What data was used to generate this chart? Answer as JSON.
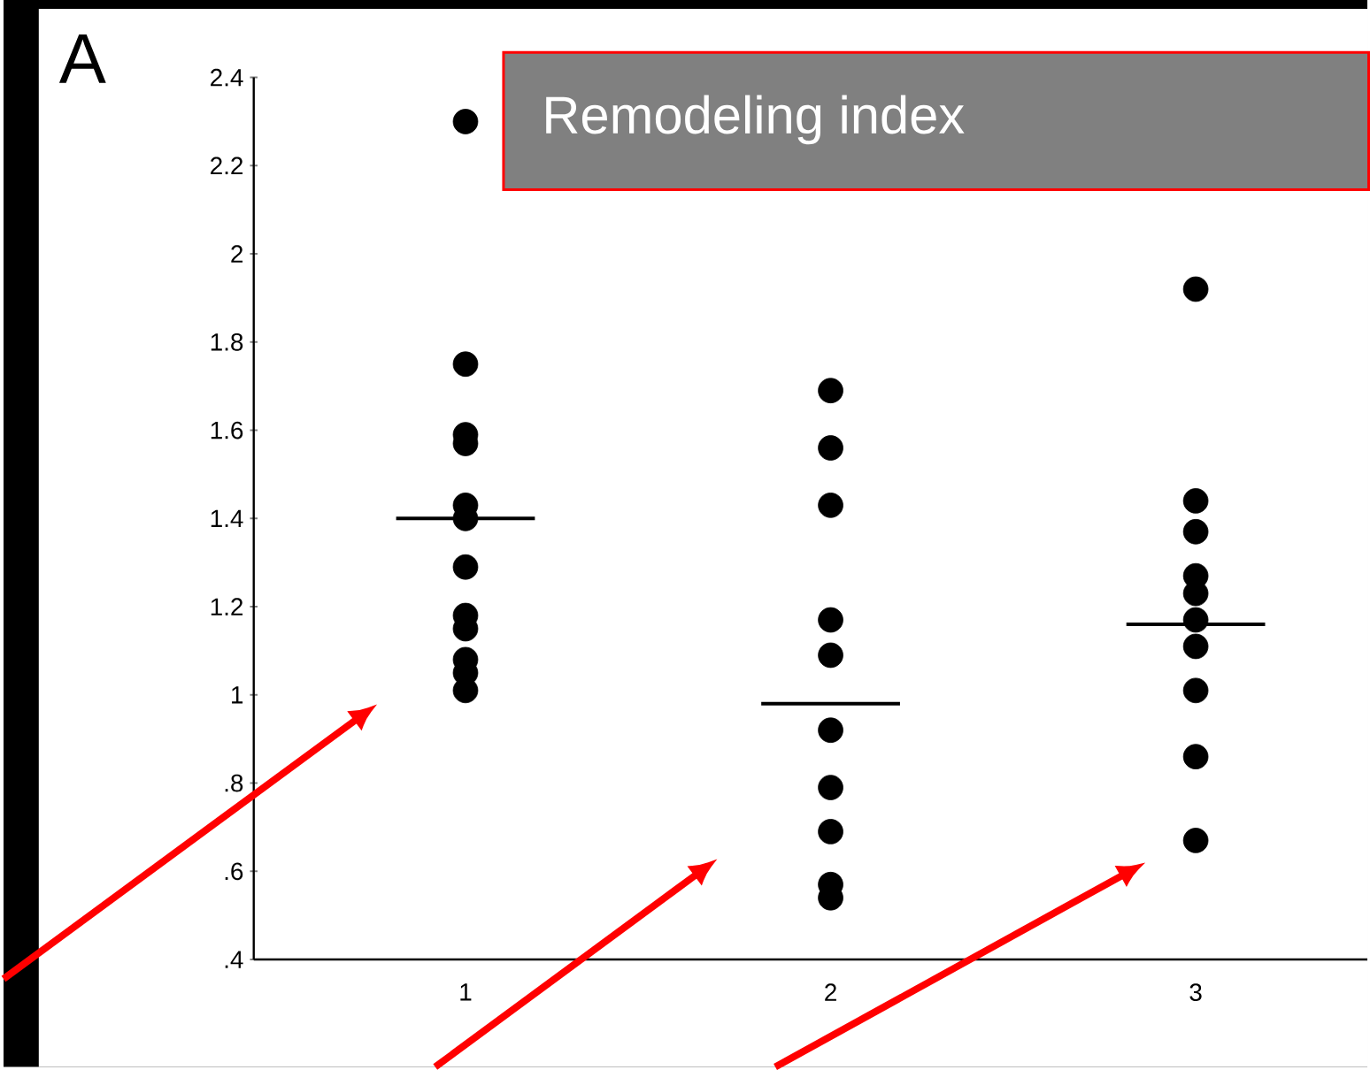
{
  "chart_data": {
    "type": "scatter",
    "title": "Remodeling index",
    "series": [
      {
        "color": "#000000",
        "marker": "circle",
        "x": [
          1,
          1,
          1,
          1,
          1,
          1,
          1,
          1,
          1,
          1,
          1,
          1,
          2,
          2,
          2,
          2,
          2,
          2,
          2,
          2,
          2,
          2,
          3,
          3,
          3,
          3,
          3,
          3,
          3,
          3,
          3,
          3
        ],
        "values": [
          2.3,
          1.75,
          1.59,
          1.57,
          1.43,
          1.4,
          1.29,
          1.18,
          1.15,
          1.08,
          1.05,
          1.01,
          1.69,
          1.56,
          1.43,
          1.17,
          1.09,
          0.92,
          0.79,
          0.69,
          0.57,
          0.54,
          1.92,
          1.44,
          1.37,
          1.27,
          1.23,
          1.17,
          1.11,
          1.01,
          0.86,
          0.67
        ]
      },
      {
        "type": "line",
        "color": "#000000",
        "marker": "none",
        "x": [
          0.81,
          1.19
        ],
        "values": [
          1.4,
          1.4
        ]
      },
      {
        "type": "line",
        "color": "#000000",
        "marker": "none",
        "x": [
          1.81,
          2.19
        ],
        "values": [
          0.98,
          0.98
        ]
      },
      {
        "type": "line",
        "color": "#000000",
        "marker": "none",
        "x": [
          2.81,
          3.19
        ],
        "values": [
          1.16,
          1.16
        ]
      }
    ],
    "xlim": [
      0.42,
      3.47
    ],
    "xticks": [
      1,
      2,
      3
    ],
    "ylim": [
      0.4,
      2.4
    ],
    "yticks": [
      {
        "value": 0.4,
        "label": ".4"
      },
      {
        "value": 0.6,
        "label": ".6"
      },
      {
        "value": 0.8,
        "label": ".8"
      },
      1,
      1.2,
      1.4,
      1.6,
      1.8,
      2,
      2.2,
      2.4
    ],
    "grid": false,
    "annotations": [
      "A"
    ]
  }
}
